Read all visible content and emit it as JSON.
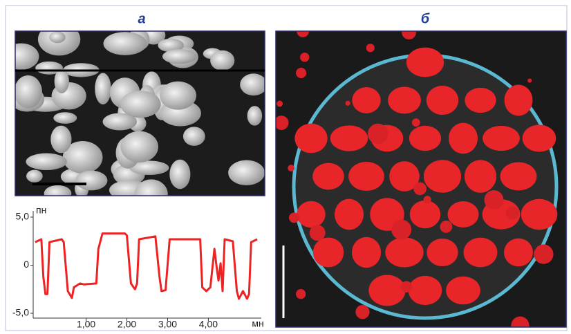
{
  "panels": {
    "a": {
      "label": "а"
    },
    "b": {
      "label": "б"
    }
  },
  "chart_data": {
    "type": "line",
    "y_label": "пн",
    "x_label": "мн",
    "x": [
      -0.25,
      -0.1,
      -0.05,
      0.0,
      0.05,
      0.1,
      0.4,
      0.45,
      0.55,
      0.65,
      0.7,
      0.85,
      0.95,
      1.25,
      1.3,
      1.4,
      1.95,
      2.0,
      2.1,
      2.2,
      2.25,
      2.3,
      2.7,
      2.8,
      2.85,
      2.95,
      3.05,
      3.8,
      3.85,
      3.95,
      4.05,
      4.15,
      4.2,
      4.25,
      4.3,
      4.35,
      4.4,
      4.6,
      4.7,
      4.75,
      4.85,
      4.95,
      5.0,
      5.05,
      5.2
    ],
    "series": [
      {
        "color": "#ee2222",
        "values": [
          2.4,
          2.7,
          -1.2,
          -3.0,
          -3.0,
          2.4,
          2.7,
          2.4,
          -2.7,
          -3.4,
          -2.3,
          -1.9,
          -2.0,
          -1.9,
          1.7,
          3.3,
          3.3,
          3.1,
          -1.9,
          -2.5,
          -1.9,
          2.7,
          3.0,
          -1.2,
          -2.7,
          -2.6,
          2.7,
          2.7,
          -2.3,
          -2.7,
          -2.3,
          1.7,
          -0.1,
          -1.6,
          0.2,
          -2.7,
          2.7,
          2.5,
          -2.7,
          -3.5,
          -2.7,
          -3.5,
          -3.0,
          2.4,
          2.7
        ]
      }
    ],
    "xlim": [
      -0.3,
      5.3
    ],
    "ylim": [
      -5,
      5
    ],
    "xticks": [
      {
        "value": 1,
        "label": "1,00"
      },
      {
        "value": 2,
        "label": "2,00"
      },
      {
        "value": 3,
        "label": "3,00"
      },
      {
        "value": 4,
        "label": "4,00"
      }
    ],
    "yticks": [
      {
        "value": 5,
        "label": "5,0"
      },
      0,
      {
        "value": -5,
        "label": "-5,0"
      }
    ]
  }
}
